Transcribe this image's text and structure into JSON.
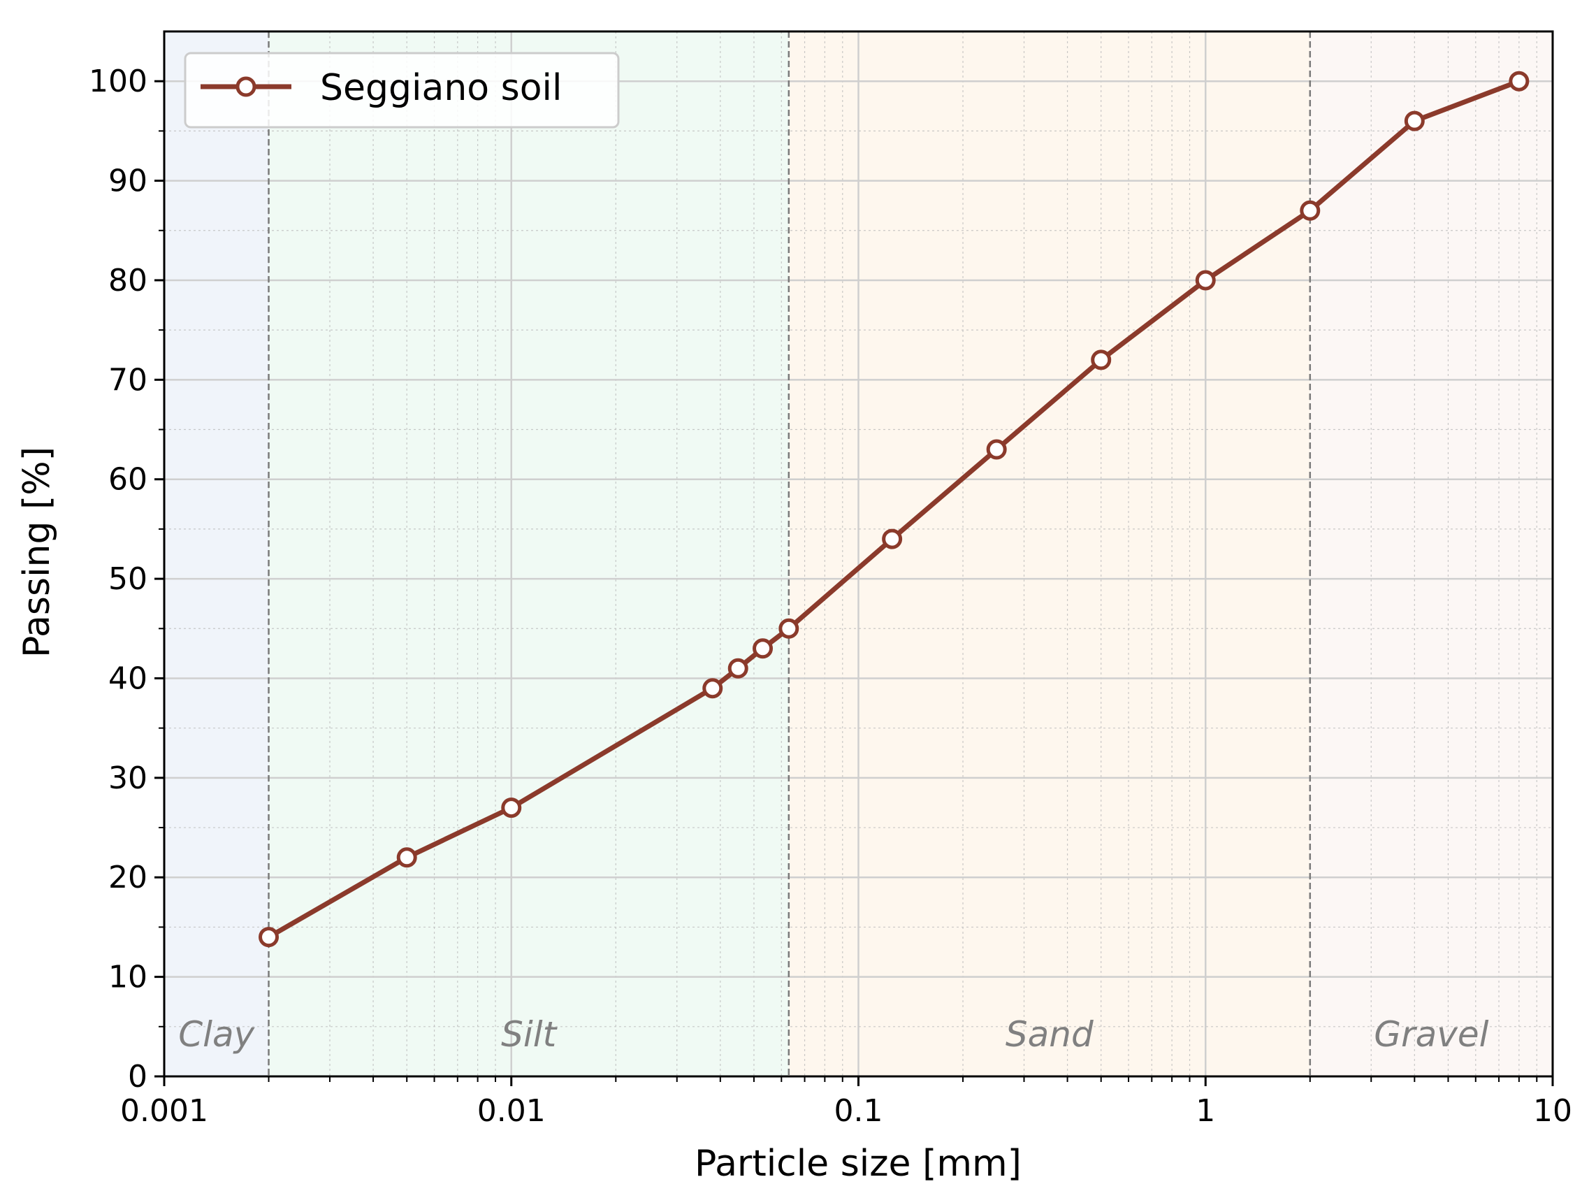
{
  "chart_data": {
    "type": "line",
    "xlabel": "Particle size [mm]",
    "ylabel": "Passing [%]",
    "xscale": "log",
    "xlim": [
      0.001,
      10
    ],
    "ylim": [
      0,
      105
    ],
    "x_ticks": [
      0.001,
      0.01,
      0.1,
      1,
      10
    ],
    "x_tick_labels": [
      "0.001",
      "0.01",
      "0.1",
      "1",
      "10"
    ],
    "y_ticks": [
      0,
      10,
      20,
      30,
      40,
      50,
      60,
      70,
      80,
      90,
      100
    ],
    "y_tick_labels": [
      "0",
      "10",
      "20",
      "30",
      "40",
      "50",
      "60",
      "70",
      "80",
      "90",
      "100"
    ],
    "grid": true,
    "legend_position": "top-left",
    "series": [
      {
        "name": "Seggiano soil",
        "color": "#8B3A2B",
        "marker": "open-circle",
        "x": [
          0.002,
          0.005,
          0.01,
          0.038,
          0.045,
          0.053,
          0.063,
          0.125,
          0.25,
          0.5,
          1,
          2,
          4,
          8
        ],
        "y": [
          14,
          22,
          27,
          39,
          41,
          43,
          45,
          54,
          63,
          72,
          80,
          87,
          96,
          100
        ]
      }
    ],
    "regions": [
      {
        "label": "Clay",
        "from": 0.001,
        "to": 0.002,
        "color": "#f0f4fa"
      },
      {
        "label": "Silt",
        "from": 0.002,
        "to": 0.063,
        "color": "#f0faf4"
      },
      {
        "label": "Sand",
        "from": 0.063,
        "to": 2,
        "color": "#fef7ee"
      },
      {
        "label": "Gravel",
        "from": 2,
        "to": 10,
        "color": "#fcf7f5"
      }
    ],
    "boundaries": [
      0.002,
      0.063,
      2
    ]
  }
}
